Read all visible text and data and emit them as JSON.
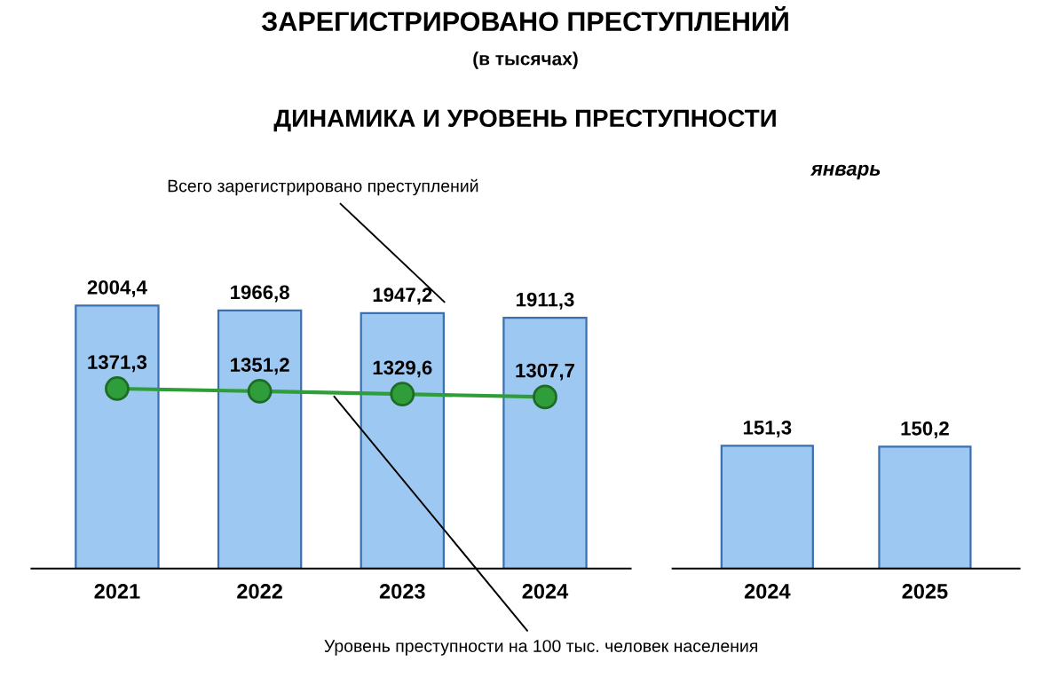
{
  "chart_data": [
    {
      "type": "bar",
      "title": "ЗАРЕГИСТРИРОВАНО ПРЕСТУПЛЕНИЙ",
      "subtitle": "(в тысячах)",
      "annotations": [
        "ДИНАМИКА И УРОВЕНЬ ПРЕСТУПНОСТИ"
      ],
      "categories": [
        "2021",
        "2022",
        "2023",
        "2024"
      ],
      "series": [
        {
          "name": "Всего зарегистрировано преступлений",
          "color": "#9cc8f2",
          "values": [
            2004.4,
            1966.8,
            1947.2,
            1911.3
          ],
          "value_labels": [
            "2004,4",
            "1966,8",
            "1947,2",
            "1911,3"
          ]
        },
        {
          "name": "Уровень преступности на 100 тыс. человек населения",
          "type": "line",
          "color": "#2f9e3a",
          "values": [
            1371.3,
            1351.2,
            1329.6,
            1307.7
          ],
          "value_labels": [
            "1371,3",
            "1351,2",
            "1329,6",
            "1307,7"
          ]
        }
      ],
      "marker": "circle",
      "line_style": "solid",
      "grid": false,
      "legend": false
    },
    {
      "type": "bar",
      "title": "январь",
      "categories": [
        "2024",
        "2025"
      ],
      "series": [
        {
          "color": "#9cc8f2",
          "values": [
            151.3,
            150.2
          ],
          "value_labels": [
            "151,3",
            "150,2"
          ]
        }
      ],
      "grid": false,
      "legend": false
    }
  ]
}
